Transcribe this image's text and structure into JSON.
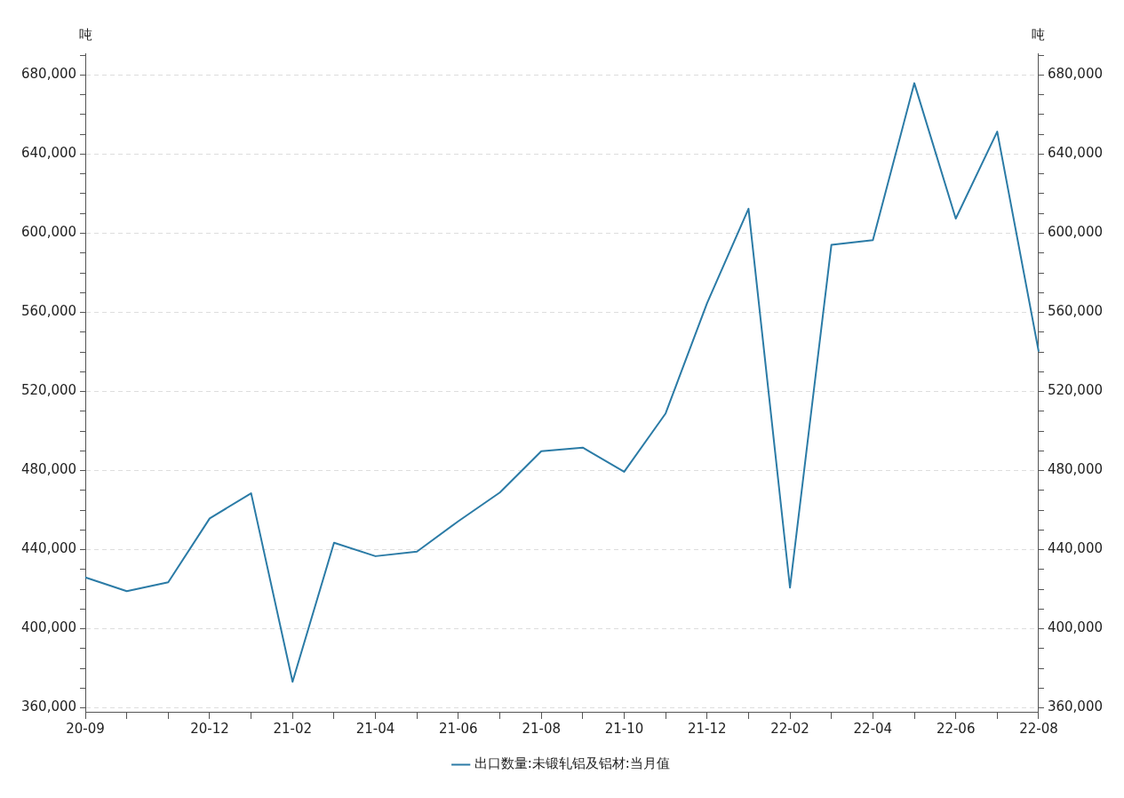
{
  "chart_data": {
    "type": "line",
    "ylabel": "吨",
    "y2label": "吨",
    "legend": "bottom",
    "grid": "y",
    "marker": "none",
    "line_style": "solid",
    "categories": [
      "20-09",
      null,
      null,
      "20-12",
      null,
      "21-02",
      null,
      "21-04",
      null,
      "21-06",
      null,
      "21-08",
      null,
      "21-10",
      null,
      "21-12",
      null,
      "22-02",
      null,
      "22-04",
      null,
      "22-06",
      null,
      "22-08"
    ],
    "series": [
      {
        "name": "出口数量:未锻轧铝及铝材:当月值",
        "color": "#2b7ba6",
        "values": [
          426000,
          419000,
          423500,
          455800,
          468500,
          373200,
          443500,
          436700,
          439000,
          454400,
          468900,
          489800,
          491600,
          479400,
          508900,
          564700,
          612400,
          420800,
          594200,
          596500,
          675900,
          607400,
          651400,
          540200
        ]
      }
    ],
    "ylim": [
      358000,
      691000
    ],
    "yticks": [
      {
        "value": 360000,
        "label": "360,000"
      },
      {
        "value": 370000,
        "label": null
      },
      {
        "value": 380000,
        "label": null
      },
      {
        "value": 390000,
        "label": null
      },
      {
        "value": 400000,
        "label": "400,000"
      },
      {
        "value": 410000,
        "label": null
      },
      {
        "value": 420000,
        "label": null
      },
      {
        "value": 430000,
        "label": null
      },
      {
        "value": 440000,
        "label": "440,000"
      },
      {
        "value": 450000,
        "label": null
      },
      {
        "value": 460000,
        "label": null
      },
      {
        "value": 470000,
        "label": null
      },
      {
        "value": 480000,
        "label": "480,000"
      },
      {
        "value": 490000,
        "label": null
      },
      {
        "value": 500000,
        "label": null
      },
      {
        "value": 510000,
        "label": null
      },
      {
        "value": 520000,
        "label": "520,000"
      },
      {
        "value": 530000,
        "label": null
      },
      {
        "value": 540000,
        "label": null
      },
      {
        "value": 550000,
        "label": null
      },
      {
        "value": 560000,
        "label": "560,000"
      },
      {
        "value": 570000,
        "label": null
      },
      {
        "value": 580000,
        "label": null
      },
      {
        "value": 590000,
        "label": null
      },
      {
        "value": 600000,
        "label": "600,000"
      },
      {
        "value": 610000,
        "label": null
      },
      {
        "value": 620000,
        "label": null
      },
      {
        "value": 630000,
        "label": null
      },
      {
        "value": 640000,
        "label": "640,000"
      },
      {
        "value": 650000,
        "label": null
      },
      {
        "value": 660000,
        "label": null
      },
      {
        "value": 670000,
        "label": null
      },
      {
        "value": 680000,
        "label": "680,000"
      },
      {
        "value": 690000,
        "label": null
      }
    ],
    "y2lim": [
      358000,
      691000
    ],
    "y2ticks": [
      {
        "value": 360000,
        "label": "360,000"
      },
      {
        "value": 370000,
        "label": null
      },
      {
        "value": 380000,
        "label": null
      },
      {
        "value": 390000,
        "label": null
      },
      {
        "value": 400000,
        "label": "400,000"
      },
      {
        "value": 410000,
        "label": null
      },
      {
        "value": 420000,
        "label": null
      },
      {
        "value": 430000,
        "label": null
      },
      {
        "value": 440000,
        "label": "440,000"
      },
      {
        "value": 450000,
        "label": null
      },
      {
        "value": 460000,
        "label": null
      },
      {
        "value": 470000,
        "label": null
      },
      {
        "value": 480000,
        "label": "480,000"
      },
      {
        "value": 490000,
        "label": null
      },
      {
        "value": 500000,
        "label": null
      },
      {
        "value": 510000,
        "label": null
      },
      {
        "value": 520000,
        "label": "520,000"
      },
      {
        "value": 530000,
        "label": null
      },
      {
        "value": 540000,
        "label": null
      },
      {
        "value": 550000,
        "label": null
      },
      {
        "value": 560000,
        "label": "560,000"
      },
      {
        "value": 570000,
        "label": null
      },
      {
        "value": 580000,
        "label": null
      },
      {
        "value": 590000,
        "label": null
      },
      {
        "value": 600000,
        "label": "600,000"
      },
      {
        "value": 610000,
        "label": null
      },
      {
        "value": 620000,
        "label": null
      },
      {
        "value": 630000,
        "label": null
      },
      {
        "value": 640000,
        "label": "640,000"
      },
      {
        "value": 650000,
        "label": null
      },
      {
        "value": 660000,
        "label": null
      },
      {
        "value": 670000,
        "label": null
      },
      {
        "value": 680000,
        "label": "680,000"
      },
      {
        "value": 690000,
        "label": null
      }
    ]
  }
}
